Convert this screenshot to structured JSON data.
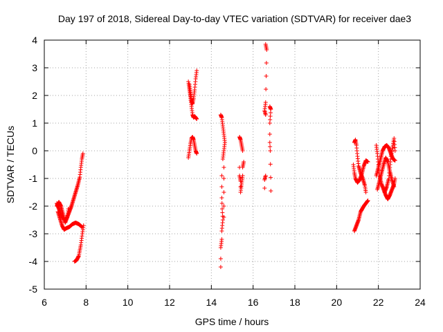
{
  "chart_data": {
    "type": "scatter",
    "title": "Day 197 of 2018, Sidereal Day-to-day VTEC variation (SDTVAR) for receiver dae3",
    "xlabel": "GPS time / hours",
    "ylabel": "SDTVAR / TECUs",
    "xlim": [
      6,
      24
    ],
    "ylim": [
      -5,
      4
    ],
    "xticks": [
      6,
      8,
      10,
      12,
      14,
      16,
      18,
      20,
      22,
      24
    ],
    "yticks": [
      -5,
      -4,
      -3,
      -2,
      -1,
      0,
      1,
      2,
      3,
      4
    ],
    "grid": true,
    "marker": "+",
    "marker_color": "#ff0000",
    "segments": [
      [
        [
          6.6,
          -1.9
        ],
        [
          6.7,
          -2.1
        ],
        [
          6.8,
          -2.3
        ],
        [
          6.9,
          -2.45
        ],
        [
          7.0,
          -2.5
        ],
        [
          7.1,
          -2.4
        ],
        [
          7.2,
          -2.2
        ],
        [
          7.3,
          -2.0
        ],
        [
          7.4,
          -1.75
        ],
        [
          7.5,
          -1.5
        ],
        [
          7.6,
          -1.25
        ],
        [
          7.7,
          -0.95
        ],
        [
          7.75,
          -0.6
        ],
        [
          7.8,
          -0.3
        ],
        [
          7.85,
          -0.1
        ]
      ],
      [
        [
          6.65,
          -2.2
        ],
        [
          6.75,
          -2.45
        ],
        [
          6.85,
          -2.7
        ],
        [
          6.95,
          -2.85
        ],
        [
          7.05,
          -2.8
        ],
        [
          7.2,
          -2.75
        ],
        [
          7.35,
          -2.65
        ],
        [
          7.5,
          -2.6
        ],
        [
          7.65,
          -2.65
        ],
        [
          7.8,
          -2.75
        ]
      ],
      [
        [
          6.6,
          -2.0
        ],
        [
          6.7,
          -1.85
        ],
        [
          6.8,
          -2.0
        ],
        [
          6.9,
          -2.3
        ],
        [
          7.0,
          -2.6
        ],
        [
          7.1,
          -2.4
        ],
        [
          7.15,
          -2.1
        ]
      ],
      [
        [
          7.45,
          -4.0
        ],
        [
          7.55,
          -3.95
        ],
        [
          7.65,
          -3.8
        ],
        [
          7.75,
          -3.4
        ],
        [
          7.82,
          -3.0
        ],
        [
          7.88,
          -2.7
        ]
      ],
      [
        [
          12.9,
          2.5
        ],
        [
          12.95,
          2.2
        ],
        [
          13.0,
          1.9
        ],
        [
          13.05,
          1.6
        ],
        [
          13.1,
          1.3
        ],
        [
          13.15,
          1.2
        ],
        [
          13.2,
          1.25
        ],
        [
          13.25,
          1.2
        ],
        [
          13.3,
          1.15
        ]
      ],
      [
        [
          12.95,
          2.4
        ],
        [
          13.0,
          2.1
        ],
        [
          13.05,
          1.8
        ],
        [
          13.1,
          1.7
        ],
        [
          13.15,
          1.9
        ],
        [
          13.2,
          2.2
        ],
        [
          13.25,
          2.6
        ],
        [
          13.3,
          2.9
        ]
      ],
      [
        [
          12.9,
          -0.25
        ],
        [
          12.95,
          0.0
        ],
        [
          13.0,
          0.25
        ],
        [
          13.05,
          0.45
        ],
        [
          13.1,
          0.5
        ],
        [
          13.15,
          0.4
        ],
        [
          13.2,
          0.2
        ],
        [
          13.25,
          0.0
        ],
        [
          13.3,
          -0.1
        ]
      ],
      [
        [
          14.45,
          1.3
        ],
        [
          14.5,
          1.2
        ],
        [
          14.55,
          0.9
        ],
        [
          14.6,
          0.6
        ],
        [
          14.65,
          0.3
        ],
        [
          14.6,
          0.0
        ],
        [
          14.55,
          -0.3
        ]
      ],
      [
        [
          14.5,
          -0.9
        ],
        [
          14.5,
          -1.3
        ],
        [
          14.5,
          -1.7
        ],
        [
          14.52,
          -2.1
        ],
        [
          14.55,
          -2.5
        ],
        [
          14.5,
          -2.9
        ],
        [
          14.5,
          -3.2
        ],
        [
          14.45,
          -3.5
        ],
        [
          14.45,
          -3.9
        ],
        [
          14.45,
          -4.2
        ]
      ],
      [
        [
          14.6,
          -0.6
        ],
        [
          14.6,
          -1.0
        ],
        [
          14.6,
          -1.5
        ],
        [
          14.6,
          -2.0
        ],
        [
          14.6,
          -2.4
        ]
      ],
      [
        [
          15.35,
          0.5
        ],
        [
          15.4,
          0.4
        ],
        [
          15.45,
          0.2
        ],
        [
          15.5,
          0.0
        ]
      ],
      [
        [
          15.35,
          -0.6
        ],
        [
          15.35,
          -0.9
        ],
        [
          15.4,
          -1.1
        ],
        [
          15.4,
          -1.3
        ],
        [
          15.4,
          -1.5
        ],
        [
          15.45,
          -1.2
        ],
        [
          15.5,
          -0.9
        ],
        [
          15.5,
          -0.6
        ],
        [
          15.55,
          -0.4
        ]
      ],
      [
        [
          16.6,
          3.85
        ],
        [
          16.65,
          3.65
        ],
        [
          16.6,
          1.75
        ],
        [
          16.55,
          1.45
        ],
        [
          16.6,
          1.3
        ],
        [
          16.6,
          -0.9
        ],
        [
          16.55,
          -1.05
        ],
        [
          16.55,
          -1.35
        ]
      ],
      [
        [
          16.8,
          1.6
        ],
        [
          16.85,
          1.5
        ],
        [
          16.8,
          1.0
        ],
        [
          16.8,
          0.6
        ],
        [
          16.8,
          0.3
        ],
        [
          16.82,
          0.0
        ],
        [
          16.85,
          -1.45
        ]
      ],
      [
        [
          20.85,
          -2.9
        ],
        [
          20.95,
          -2.7
        ],
        [
          21.05,
          -2.5
        ],
        [
          21.15,
          -2.2
        ],
        [
          21.3,
          -2.0
        ],
        [
          21.45,
          -1.85
        ],
        [
          21.5,
          -1.8
        ]
      ],
      [
        [
          20.8,
          -0.5
        ],
        [
          20.85,
          -0.8
        ],
        [
          20.9,
          -1.0
        ],
        [
          21.0,
          -1.15
        ],
        [
          21.1,
          -1.05
        ],
        [
          21.2,
          -0.85
        ],
        [
          21.3,
          -0.55
        ],
        [
          21.4,
          -0.35
        ],
        [
          21.5,
          -0.4
        ]
      ],
      [
        [
          20.85,
          0.3
        ],
        [
          20.9,
          0.4
        ],
        [
          20.95,
          0.2
        ],
        [
          21.0,
          -0.2
        ],
        [
          21.05,
          -0.55
        ],
        [
          21.15,
          -0.8
        ],
        [
          21.25,
          -1.0
        ],
        [
          21.35,
          -1.25
        ],
        [
          21.4,
          -1.5
        ]
      ],
      [
        [
          21.9,
          0.2
        ],
        [
          21.95,
          -0.1
        ],
        [
          22.0,
          -0.5
        ],
        [
          22.05,
          -0.9
        ],
        [
          22.15,
          -1.2
        ],
        [
          22.25,
          -1.4
        ],
        [
          22.35,
          -1.6
        ],
        [
          22.45,
          -1.75
        ],
        [
          22.55,
          -1.6
        ],
        [
          22.65,
          -1.4
        ],
        [
          22.75,
          -1.2
        ],
        [
          22.8,
          -1.0
        ]
      ],
      [
        [
          21.9,
          -0.9
        ],
        [
          22.0,
          -0.6
        ],
        [
          22.1,
          -0.3
        ],
        [
          22.2,
          0.0
        ],
        [
          22.3,
          0.15
        ],
        [
          22.4,
          0.2
        ],
        [
          22.5,
          0.1
        ],
        [
          22.6,
          -0.1
        ],
        [
          22.7,
          -0.3
        ],
        [
          22.8,
          -0.35
        ]
      ],
      [
        [
          22.3,
          -1.5
        ],
        [
          22.4,
          -1.3
        ],
        [
          22.5,
          -1.0
        ],
        [
          22.55,
          -0.6
        ],
        [
          22.6,
          -0.2
        ],
        [
          22.7,
          0.2
        ],
        [
          22.75,
          0.45
        ],
        [
          22.8,
          0.0
        ]
      ],
      [
        [
          21.95,
          -1.4
        ],
        [
          22.05,
          -1.1
        ],
        [
          22.15,
          -0.8
        ],
        [
          22.25,
          -0.5
        ],
        [
          22.35,
          -0.25
        ],
        [
          22.45,
          -0.4
        ],
        [
          22.55,
          -0.75
        ],
        [
          22.65,
          -1.05
        ],
        [
          22.75,
          -1.3
        ]
      ]
    ]
  }
}
